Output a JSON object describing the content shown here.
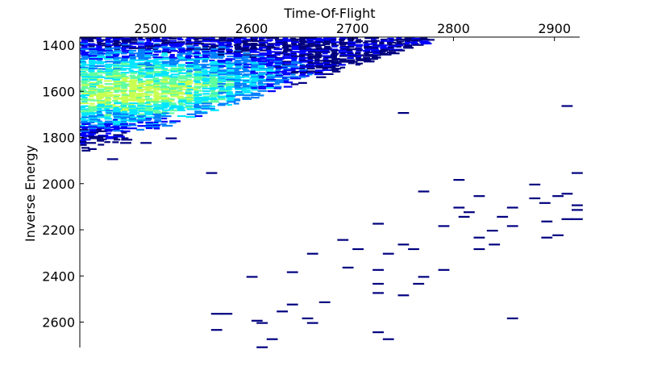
{
  "chart_data": {
    "type": "heatmap",
    "title": "",
    "xlabel": "Time-Of-Flight",
    "ylabel": "Inverse Energy",
    "x_axis_position": "top",
    "y_axis_inverted": true,
    "xlim": [
      2430,
      2925
    ],
    "ylim": [
      1365,
      2710
    ],
    "xticks": [
      2500,
      2600,
      2700,
      2800,
      2900
    ],
    "yticks": [
      1400,
      1600,
      1800,
      2000,
      2200,
      2400,
      2600
    ],
    "grid": false,
    "legend": "none",
    "colormap": [
      "#00007f",
      "#0000ff",
      "#0080ff",
      "#00e5ff",
      "#5fffa0",
      "#c8ff50"
    ],
    "dense_region": {
      "description_values": "upper-left cluster of high counts",
      "x_start": 2430,
      "x_end": 2780,
      "y_top": 1365,
      "y_bottom_at_x_start": 1860,
      "y_bottom_at_x_end": 1370,
      "peak": [
        2480,
        1600
      ]
    },
    "sparse_points": [
      [
        2440,
        1820
      ],
      [
        2462,
        1890
      ],
      [
        2475,
        1820
      ],
      [
        2495,
        1820
      ],
      [
        2520,
        1800
      ],
      [
        2560,
        1950
      ],
      [
        2565,
        2560
      ],
      [
        2575,
        2560
      ],
      [
        2565,
        2630
      ],
      [
        2600,
        2400
      ],
      [
        2605,
        2590
      ],
      [
        2610,
        2600
      ],
      [
        2620,
        2670
      ],
      [
        2610,
        2705
      ],
      [
        2630,
        2550
      ],
      [
        2640,
        2380
      ],
      [
        2640,
        2520
      ],
      [
        2655,
        2580
      ],
      [
        2660,
        2300
      ],
      [
        2660,
        2600
      ],
      [
        2672,
        2510
      ],
      [
        2690,
        2240
      ],
      [
        2695,
        2360
      ],
      [
        2705,
        2280
      ],
      [
        2725,
        2170
      ],
      [
        2725,
        2370
      ],
      [
        2725,
        2430
      ],
      [
        2725,
        2470
      ],
      [
        2725,
        2640
      ],
      [
        2735,
        2300
      ],
      [
        2735,
        2670
      ],
      [
        2750,
        1690
      ],
      [
        2750,
        2260
      ],
      [
        2750,
        2480
      ],
      [
        2760,
        2280
      ],
      [
        2765,
        2430
      ],
      [
        2770,
        2030
      ],
      [
        2770,
        2400
      ],
      [
        2790,
        2180
      ],
      [
        2790,
        2370
      ],
      [
        2805,
        1980
      ],
      [
        2805,
        2100
      ],
      [
        2810,
        2140
      ],
      [
        2815,
        2120
      ],
      [
        2825,
        2050
      ],
      [
        2825,
        2230
      ],
      [
        2825,
        2280
      ],
      [
        2838,
        2200
      ],
      [
        2840,
        2260
      ],
      [
        2848,
        2140
      ],
      [
        2858,
        2100
      ],
      [
        2858,
        2180
      ],
      [
        2858,
        2580
      ],
      [
        2880,
        2000
      ],
      [
        2880,
        2060
      ],
      [
        2890,
        2080
      ],
      [
        2892,
        2160
      ],
      [
        2892,
        2230
      ],
      [
        2903,
        2050
      ],
      [
        2903,
        2220
      ],
      [
        2912,
        1660
      ],
      [
        2912,
        2040
      ],
      [
        2912,
        2150
      ],
      [
        2922,
        1950
      ],
      [
        2922,
        2090
      ],
      [
        2922,
        2110
      ],
      [
        2922,
        2150
      ]
    ]
  }
}
